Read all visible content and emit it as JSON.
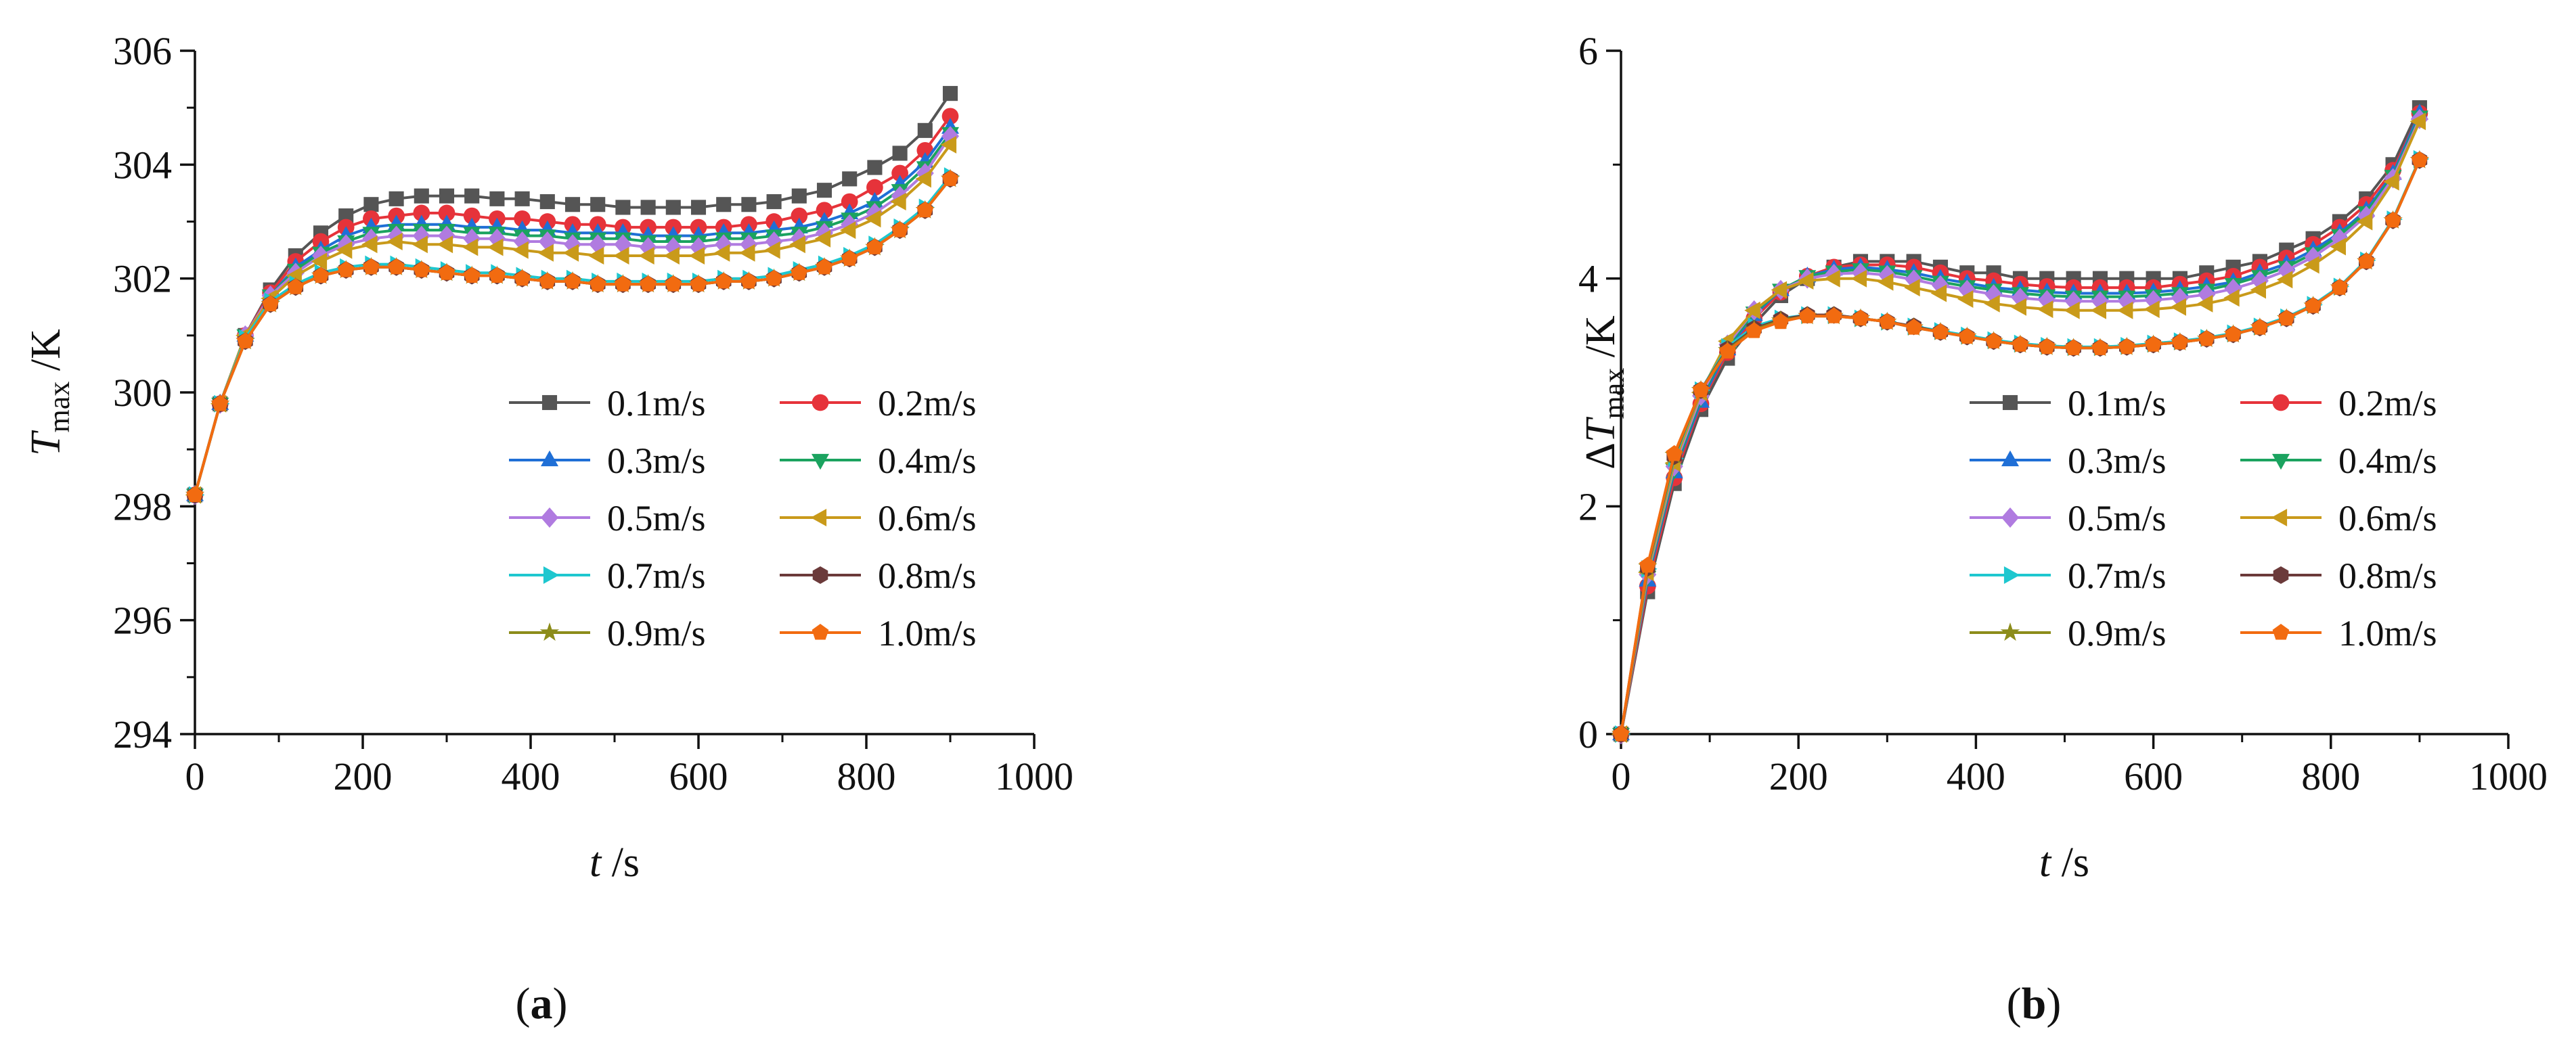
{
  "figure": {
    "panels": [
      {
        "id": "a",
        "caption_open": "(",
        "caption_letter": "a",
        "caption_close": ")"
      },
      {
        "id": "b",
        "caption_open": "(",
        "caption_letter": "b",
        "caption_close": ")"
      }
    ]
  },
  "chart_data": [
    {
      "type": "line",
      "panel": "a",
      "ylabel_symbol": "T",
      "ylabel_sub": "max",
      "ylabel_unit": " /K",
      "xlabel_symbol": "t",
      "xlabel_unit": " /s",
      "xlim": [
        0,
        1000
      ],
      "ylim": [
        294,
        306
      ],
      "xticks": [
        0,
        200,
        400,
        600,
        800,
        1000
      ],
      "yticks": [
        294,
        296,
        298,
        300,
        302,
        304,
        306
      ],
      "legend_position": "lower-right",
      "x": [
        0,
        30,
        60,
        90,
        120,
        150,
        180,
        210,
        240,
        270,
        300,
        330,
        360,
        390,
        420,
        450,
        480,
        510,
        540,
        570,
        600,
        630,
        660,
        690,
        720,
        750,
        780,
        810,
        840,
        870,
        900
      ],
      "series": [
        {
          "name": "0.1m/s",
          "color": "#555555",
          "marker": "square",
          "values": [
            298.2,
            299.8,
            301.0,
            301.8,
            302.4,
            302.8,
            303.1,
            303.3,
            303.4,
            303.45,
            303.45,
            303.45,
            303.4,
            303.4,
            303.35,
            303.3,
            303.3,
            303.25,
            303.25,
            303.25,
            303.25,
            303.3,
            303.3,
            303.35,
            303.45,
            303.55,
            303.75,
            303.95,
            304.2,
            304.6,
            305.25
          ]
        },
        {
          "name": "0.2m/s",
          "color": "#e6333a",
          "marker": "circle",
          "values": [
            298.2,
            299.8,
            301.0,
            301.75,
            302.3,
            302.65,
            302.9,
            303.05,
            303.1,
            303.15,
            303.15,
            303.1,
            303.05,
            303.05,
            303.0,
            302.95,
            302.95,
            302.9,
            302.9,
            302.9,
            302.9,
            302.9,
            302.95,
            303.0,
            303.1,
            303.2,
            303.35,
            303.6,
            303.85,
            304.25,
            304.85
          ]
        },
        {
          "name": "0.3m/s",
          "color": "#1f6fd6",
          "marker": "triangle-up",
          "values": [
            298.2,
            299.8,
            301.0,
            301.7,
            302.2,
            302.5,
            302.75,
            302.9,
            302.95,
            302.95,
            302.95,
            302.9,
            302.9,
            302.85,
            302.85,
            302.8,
            302.8,
            302.8,
            302.75,
            302.75,
            302.75,
            302.8,
            302.8,
            302.85,
            302.9,
            303.0,
            303.15,
            303.35,
            303.65,
            304.05,
            304.65
          ]
        },
        {
          "name": "0.4m/s",
          "color": "#1ba35f",
          "marker": "triangle-down",
          "values": [
            298.2,
            299.8,
            301.0,
            301.7,
            302.15,
            302.45,
            302.65,
            302.8,
            302.85,
            302.85,
            302.85,
            302.8,
            302.8,
            302.75,
            302.75,
            302.7,
            302.7,
            302.7,
            302.65,
            302.65,
            302.65,
            302.7,
            302.7,
            302.75,
            302.8,
            302.9,
            303.05,
            303.25,
            303.55,
            303.95,
            304.55
          ]
        },
        {
          "name": "0.5m/s",
          "color": "#b07be0",
          "marker": "diamond",
          "values": [
            298.2,
            299.8,
            301.0,
            301.7,
            302.1,
            302.4,
            302.6,
            302.7,
            302.75,
            302.75,
            302.75,
            302.7,
            302.7,
            302.65,
            302.65,
            302.6,
            302.6,
            302.6,
            302.55,
            302.55,
            302.55,
            302.6,
            302.6,
            302.65,
            302.7,
            302.8,
            302.95,
            303.15,
            303.45,
            303.85,
            304.5
          ]
        },
        {
          "name": "0.6m/s",
          "color": "#c99a1a",
          "marker": "triangle-left",
          "values": [
            298.2,
            299.8,
            301.0,
            301.65,
            302.05,
            302.3,
            302.5,
            302.6,
            302.65,
            302.6,
            302.6,
            302.55,
            302.55,
            302.5,
            302.45,
            302.45,
            302.4,
            302.4,
            302.4,
            302.4,
            302.4,
            302.45,
            302.45,
            302.5,
            302.6,
            302.7,
            302.85,
            303.05,
            303.35,
            303.75,
            304.35
          ]
        },
        {
          "name": "0.7m/s",
          "color": "#1ec7cf",
          "marker": "triangle-right",
          "values": [
            298.2,
            299.8,
            300.95,
            301.6,
            301.9,
            302.1,
            302.2,
            302.25,
            302.25,
            302.2,
            302.15,
            302.1,
            302.1,
            302.05,
            302.0,
            302.0,
            301.95,
            301.95,
            301.95,
            301.95,
            301.95,
            302.0,
            302.0,
            302.05,
            302.15,
            302.25,
            302.4,
            302.6,
            302.9,
            303.25,
            303.8
          ]
        },
        {
          "name": "0.8m/s",
          "color": "#6b3a3a",
          "marker": "hexagon",
          "values": [
            298.2,
            299.8,
            300.9,
            301.55,
            301.85,
            302.05,
            302.15,
            302.2,
            302.2,
            302.15,
            302.1,
            302.05,
            302.05,
            302.0,
            301.95,
            301.95,
            301.9,
            301.9,
            301.9,
            301.9,
            301.9,
            301.95,
            301.95,
            302.0,
            302.1,
            302.2,
            302.35,
            302.55,
            302.85,
            303.2,
            303.75
          ]
        },
        {
          "name": "0.9m/s",
          "color": "#8c8c1a",
          "marker": "star",
          "values": [
            298.2,
            299.8,
            300.9,
            301.55,
            301.85,
            302.05,
            302.15,
            302.2,
            302.2,
            302.15,
            302.1,
            302.05,
            302.05,
            302.0,
            301.95,
            301.95,
            301.9,
            301.9,
            301.9,
            301.9,
            301.9,
            301.95,
            301.95,
            302.0,
            302.1,
            302.2,
            302.35,
            302.55,
            302.85,
            303.2,
            303.75
          ]
        },
        {
          "name": "1.0m/s",
          "color": "#f26b10",
          "marker": "pentagon",
          "values": [
            298.2,
            299.8,
            300.9,
            301.55,
            301.85,
            302.05,
            302.15,
            302.2,
            302.2,
            302.15,
            302.1,
            302.05,
            302.05,
            302.0,
            301.95,
            301.95,
            301.9,
            301.9,
            301.9,
            301.9,
            301.9,
            301.95,
            301.95,
            302.0,
            302.1,
            302.2,
            302.35,
            302.55,
            302.85,
            303.2,
            303.75
          ]
        }
      ]
    },
    {
      "type": "line",
      "panel": "b",
      "ylabel_prefix": "Δ",
      "ylabel_symbol": "T",
      "ylabel_sub": "max",
      "ylabel_unit": " /K",
      "xlabel_symbol": "t",
      "xlabel_unit": " /s",
      "xlim": [
        0,
        1000
      ],
      "ylim": [
        0,
        6
      ],
      "xticks": [
        0,
        200,
        400,
        600,
        800,
        1000
      ],
      "yticks": [
        0,
        2,
        4,
        6
      ],
      "legend_position": "lower-right",
      "x": [
        0,
        30,
        60,
        90,
        120,
        150,
        180,
        210,
        240,
        270,
        300,
        330,
        360,
        390,
        420,
        450,
        480,
        510,
        540,
        570,
        600,
        630,
        660,
        690,
        720,
        750,
        780,
        810,
        840,
        870,
        900
      ],
      "series": [
        {
          "name": "0.1m/s",
          "color": "#555555",
          "marker": "square",
          "values": [
            0.0,
            1.25,
            2.2,
            2.85,
            3.3,
            3.6,
            3.85,
            4.0,
            4.1,
            4.15,
            4.15,
            4.15,
            4.1,
            4.05,
            4.05,
            4.0,
            4.0,
            4.0,
            4.0,
            4.0,
            4.0,
            4.0,
            4.05,
            4.1,
            4.15,
            4.25,
            4.35,
            4.5,
            4.7,
            5.0,
            5.5
          ]
        },
        {
          "name": "0.2m/s",
          "color": "#e6333a",
          "marker": "circle",
          "values": [
            0.0,
            1.3,
            2.25,
            2.9,
            3.35,
            3.65,
            3.88,
            4.02,
            4.1,
            4.12,
            4.12,
            4.1,
            4.05,
            4.0,
            3.98,
            3.95,
            3.93,
            3.92,
            3.92,
            3.92,
            3.92,
            3.95,
            3.98,
            4.02,
            4.1,
            4.18,
            4.3,
            4.45,
            4.65,
            4.95,
            5.45
          ]
        },
        {
          "name": "0.3m/s",
          "color": "#1f6fd6",
          "marker": "triangle-up",
          "values": [
            0.0,
            1.35,
            2.3,
            2.92,
            3.38,
            3.68,
            3.9,
            4.02,
            4.08,
            4.1,
            4.08,
            4.05,
            4.0,
            3.96,
            3.92,
            3.9,
            3.88,
            3.87,
            3.87,
            3.87,
            3.88,
            3.9,
            3.93,
            3.97,
            4.05,
            4.13,
            4.25,
            4.4,
            4.6,
            4.92,
            5.45
          ]
        },
        {
          "name": "0.4m/s",
          "color": "#1ba35f",
          "marker": "triangle-down",
          "values": [
            0.0,
            1.38,
            2.32,
            2.95,
            3.4,
            3.7,
            3.9,
            4.02,
            4.06,
            4.08,
            4.06,
            4.02,
            3.97,
            3.93,
            3.9,
            3.87,
            3.85,
            3.84,
            3.84,
            3.84,
            3.85,
            3.87,
            3.9,
            3.95,
            4.02,
            4.1,
            4.22,
            4.38,
            4.58,
            4.9,
            5.42
          ]
        },
        {
          "name": "0.5m/s",
          "color": "#b07be0",
          "marker": "diamond",
          "values": [
            0.0,
            1.4,
            2.35,
            2.97,
            3.42,
            3.72,
            3.9,
            4.0,
            4.04,
            4.05,
            4.03,
            3.99,
            3.94,
            3.9,
            3.86,
            3.83,
            3.81,
            3.8,
            3.8,
            3.8,
            3.81,
            3.83,
            3.86,
            3.91,
            3.98,
            4.07,
            4.19,
            4.35,
            4.55,
            4.88,
            5.4
          ]
        },
        {
          "name": "0.6m/s",
          "color": "#c99a1a",
          "marker": "triangle-left",
          "values": [
            0.0,
            1.42,
            2.38,
            3.0,
            3.45,
            3.72,
            3.9,
            3.98,
            4.0,
            4.0,
            3.97,
            3.92,
            3.87,
            3.82,
            3.78,
            3.75,
            3.73,
            3.72,
            3.72,
            3.72,
            3.73,
            3.75,
            3.78,
            3.83,
            3.9,
            3.99,
            4.12,
            4.28,
            4.5,
            4.85,
            5.38
          ]
        },
        {
          "name": "0.7m/s",
          "color": "#1ec7cf",
          "marker": "triangle-right",
          "values": [
            0.0,
            1.45,
            2.42,
            3.02,
            3.4,
            3.58,
            3.65,
            3.68,
            3.68,
            3.65,
            3.62,
            3.58,
            3.54,
            3.5,
            3.46,
            3.43,
            3.41,
            3.4,
            3.4,
            3.41,
            3.43,
            3.45,
            3.48,
            3.52,
            3.58,
            3.66,
            3.77,
            3.93,
            4.16,
            4.52,
            5.05
          ]
        },
        {
          "name": "0.8m/s",
          "color": "#6b3a3a",
          "marker": "hexagon",
          "values": [
            0.0,
            1.46,
            2.44,
            3.02,
            3.38,
            3.56,
            3.64,
            3.68,
            3.68,
            3.65,
            3.62,
            3.58,
            3.53,
            3.49,
            3.45,
            3.42,
            3.4,
            3.39,
            3.39,
            3.4,
            3.42,
            3.44,
            3.47,
            3.51,
            3.57,
            3.65,
            3.76,
            3.92,
            4.15,
            4.51,
            5.04
          ]
        },
        {
          "name": "0.9m/s",
          "color": "#8c8c1a",
          "marker": "star",
          "values": [
            0.0,
            1.47,
            2.45,
            3.02,
            3.37,
            3.55,
            3.63,
            3.67,
            3.67,
            3.65,
            3.62,
            3.57,
            3.53,
            3.49,
            3.45,
            3.42,
            3.4,
            3.39,
            3.39,
            3.4,
            3.42,
            3.44,
            3.47,
            3.51,
            3.57,
            3.65,
            3.76,
            3.92,
            4.15,
            4.51,
            5.04
          ]
        },
        {
          "name": "1.0m/s",
          "color": "#f26b10",
          "marker": "pentagon",
          "values": [
            0.0,
            1.48,
            2.46,
            3.02,
            3.36,
            3.54,
            3.62,
            3.67,
            3.67,
            3.65,
            3.62,
            3.57,
            3.53,
            3.49,
            3.45,
            3.42,
            3.4,
            3.39,
            3.39,
            3.4,
            3.42,
            3.44,
            3.47,
            3.51,
            3.57,
            3.65,
            3.76,
            3.92,
            4.15,
            4.51,
            5.04
          ]
        }
      ]
    }
  ]
}
